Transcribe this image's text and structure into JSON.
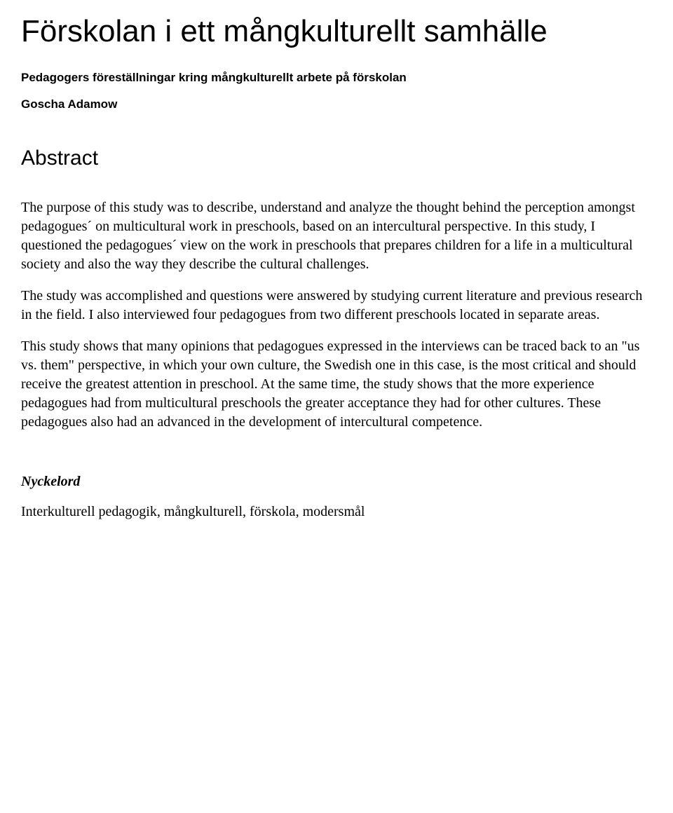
{
  "title": "Förskolan i ett mångkulturellt samhälle",
  "subtitle": "Pedagogers föreställningar kring mångkulturellt arbete på förskolan",
  "author": "Goscha Adamow",
  "abstract": {
    "heading": "Abstract",
    "paragraphs": [
      "The purpose of this study was to describe, understand and analyze the thought behind the perception amongst pedagogues´ on multicultural work in preschools, based on an intercultural perspective. In this study, I questioned the pedagogues´ view on the work in preschools that prepares children for a life in a multicultural society and also the way they describe the cultural challenges.",
      "The study was accomplished and questions were answered by studying current literature and previous research in the field. I also interviewed four pedagogues from two different preschools located in separate areas.",
      "This study shows that many opinions that pedagogues expressed in the interviews can be traced back to an \"us vs. them\" perspective, in which your own culture, the Swedish one in this case, is the most critical and should receive the greatest attention in preschool. At the same time, the study shows that the more experience pedagogues had from multicultural preschools the greater acceptance they had for other cultures. These pedagogues also had an advanced in the development of intercultural competence."
    ]
  },
  "keywords": {
    "heading": "Nyckelord",
    "text": "Interkulturell pedagogik, mångkulturell, förskola, modersmål"
  }
}
